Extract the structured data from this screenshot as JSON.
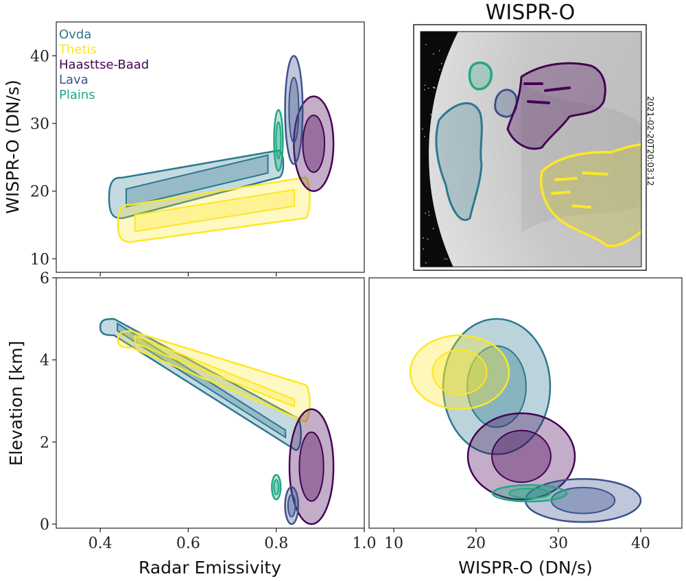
{
  "chart_data": [
    {
      "panel": "top-left",
      "type": "scatter",
      "xlabel": "",
      "ylabel": "WISPR-O (DN/s)",
      "xlim": [
        0.3,
        1.0
      ],
      "ylim": [
        8,
        45
      ],
      "xticks": [
        0.4,
        0.6,
        0.8
      ],
      "yticks": [
        10,
        20,
        30,
        40
      ],
      "ytick_labels": [
        "10",
        "20",
        "30",
        "40"
      ],
      "legend_placement": "top-left",
      "series": [
        {
          "name": "Ovda",
          "color": "#2a788e",
          "shape": "band",
          "x": [
            0.42,
            0.82
          ],
          "y": [
            [
              16,
              22
            ],
            [
              22,
              26
            ]
          ]
        },
        {
          "name": "Thetis",
          "color": "#fde725",
          "shape": "band",
          "x": [
            0.44,
            0.88
          ],
          "y": [
            [
              12.5,
              18
            ],
            [
              16,
              22
            ]
          ]
        },
        {
          "name": "Haasttse-Baad",
          "color": "#440154",
          "shape": "blob",
          "x": [
            0.84,
            0.93
          ],
          "y": [
            20,
            34
          ]
        },
        {
          "name": "Lava",
          "color": "#3b528b",
          "shape": "blob",
          "x": [
            0.82,
            0.86
          ],
          "y": [
            24,
            40
          ]
        },
        {
          "name": "Plains",
          "color": "#22a884",
          "shape": "blob",
          "x": [
            0.795,
            0.815
          ],
          "y": [
            23,
            32
          ]
        }
      ]
    },
    {
      "panel": "top-right",
      "type": "image",
      "title": "WISPR-O",
      "timestamp": "2021-02-20T20:03:12"
    },
    {
      "panel": "bottom-left",
      "type": "scatter",
      "xlabel": "Radar Emissivity",
      "ylabel": "Elevation [km]",
      "xlim": [
        0.3,
        1.0
      ],
      "ylim": [
        -0.1,
        6
      ],
      "xticks": [
        0.4,
        0.6,
        0.8,
        1.0
      ],
      "xtick_labels": [
        "0.4",
        "0.6",
        "0.8",
        "1.0"
      ],
      "yticks": [
        0,
        2,
        4,
        6
      ],
      "ytick_labels": [
        "0",
        "2",
        "4",
        "6"
      ],
      "series": [
        {
          "name": "Ovda",
          "color": "#2a788e",
          "shape": "band",
          "x": [
            0.4,
            0.86
          ],
          "y": [
            [
              4.6,
              5.0
            ],
            [
              1.8,
              2.6
            ]
          ]
        },
        {
          "name": "Thetis",
          "color": "#fde725",
          "shape": "band",
          "x": [
            0.44,
            0.88
          ],
          "y": [
            [
              4.3,
              4.7
            ],
            [
              2.5,
              3.4
            ]
          ]
        },
        {
          "name": "Haasttse-Baad",
          "color": "#440154",
          "shape": "blob",
          "x": [
            0.83,
            0.93
          ],
          "y": [
            0.0,
            2.8
          ]
        },
        {
          "name": "Lava",
          "color": "#3b528b",
          "shape": "blob",
          "x": [
            0.82,
            0.85
          ],
          "y": [
            0.0,
            0.9
          ]
        },
        {
          "name": "Plains",
          "color": "#22a884",
          "shape": "blob",
          "x": [
            0.79,
            0.81
          ],
          "y": [
            0.6,
            1.2
          ]
        }
      ]
    },
    {
      "panel": "bottom-right",
      "type": "scatter",
      "xlabel": "WISPR-O (DN/s)",
      "ylabel": "",
      "xlim": [
        7,
        45
      ],
      "ylim": [
        -0.1,
        6
      ],
      "xticks": [
        10,
        20,
        30,
        40
      ],
      "xtick_labels": [
        "10",
        "20",
        "30",
        "40"
      ],
      "series": [
        {
          "name": "Ovda",
          "color": "#2a788e",
          "shape": "blob",
          "x": [
            16,
            29
          ],
          "y": [
            1.7,
            5.0
          ]
        },
        {
          "name": "Thetis",
          "color": "#fde725",
          "shape": "blob",
          "x": [
            12,
            24
          ],
          "y": [
            2.8,
            4.6
          ]
        },
        {
          "name": "Haasttse-Baad",
          "color": "#440154",
          "shape": "blob",
          "x": [
            19,
            32
          ],
          "y": [
            0.6,
            2.7
          ]
        },
        {
          "name": "Lava",
          "color": "#3b528b",
          "shape": "blob",
          "x": [
            26,
            40
          ],
          "y": [
            0.05,
            1.1
          ]
        },
        {
          "name": "Plains",
          "color": "#22a884",
          "shape": "blob",
          "x": [
            22,
            31
          ],
          "y": [
            0.55,
            0.95
          ]
        }
      ]
    }
  ]
}
